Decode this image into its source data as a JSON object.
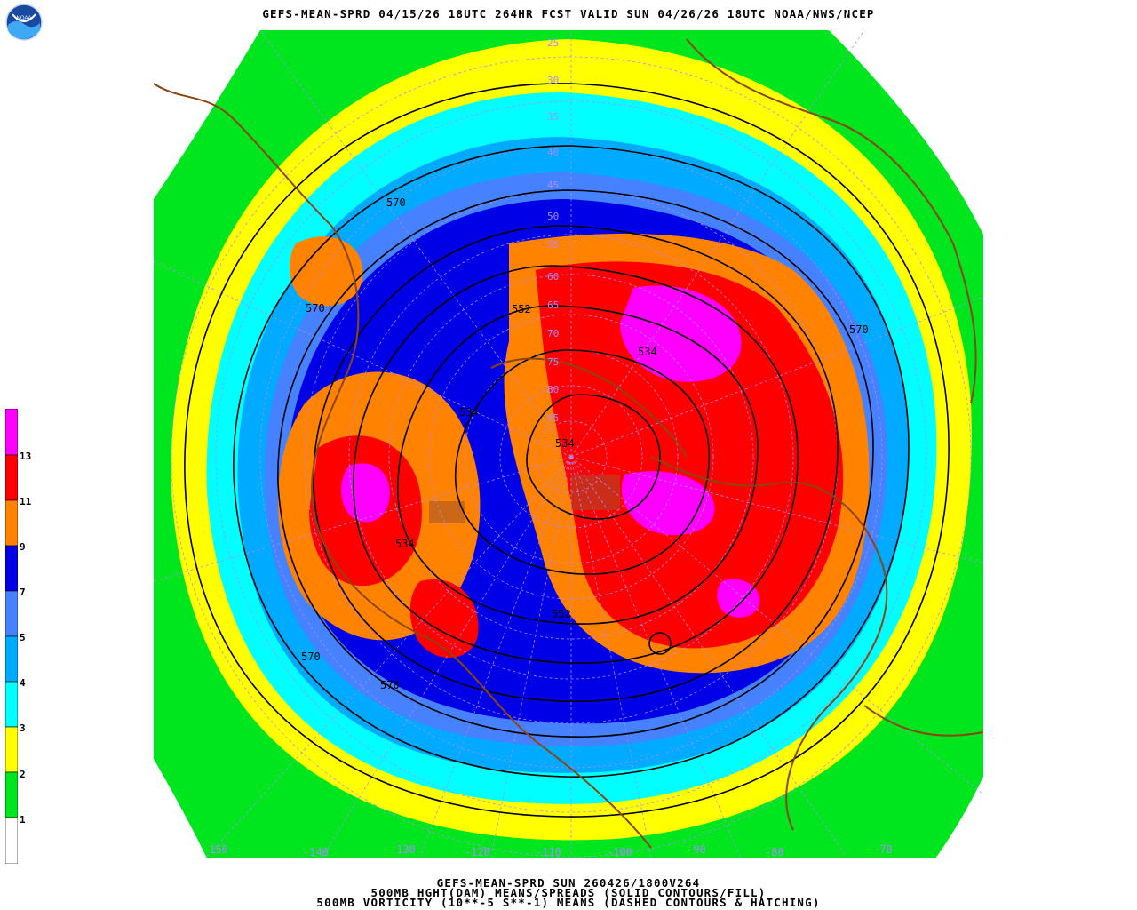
{
  "header": {
    "title": "GEFS-MEAN-SPRD 04/15/26 18UTC 264HR FCST VALID SUN 04/26/26 18UTC NOAA/NWS/NCEP",
    "logo_text": "NOAA"
  },
  "footer": {
    "line1": "GEFS-MEAN-SPRD SUN 260426/1800V264",
    "line2": "500MB HGHT(DAM) MEANS/SPREADS (SOLID CONTOURS/FILL)",
    "line3": "500MB VORTICITY (10**-5 S**-1) MEANS (DASHED CONTOURS & HATCHING)"
  },
  "legend": {
    "levels": [
      "1",
      "2",
      "3",
      "4",
      "5",
      "7",
      "9",
      "11",
      "13"
    ],
    "colors": [
      "#ffffff",
      "#00e61e",
      "#ffff00",
      "#00ffff",
      "#00aaff",
      "#4682ff",
      "#0000e6",
      "#ff8200",
      "#ff0000",
      "#ff00ff"
    ]
  },
  "map": {
    "background_color": "#00e61e",
    "coastline_color": "#8b4513",
    "graticule_color": "#a98bff",
    "lat_labels": [
      "25",
      "30",
      "35",
      "40",
      "45",
      "50",
      "55",
      "60",
      "65",
      "70",
      "75",
      "80",
      "85"
    ],
    "lon_labels": [
      "-150",
      "-140",
      "-130",
      "-120",
      "-110",
      "-100",
      "-90",
      "-80",
      "-70"
    ],
    "contour_labels": [
      "570",
      "570",
      "552",
      "534",
      "534",
      "534",
      "570",
      "534",
      "552",
      "570",
      "570"
    ]
  }
}
